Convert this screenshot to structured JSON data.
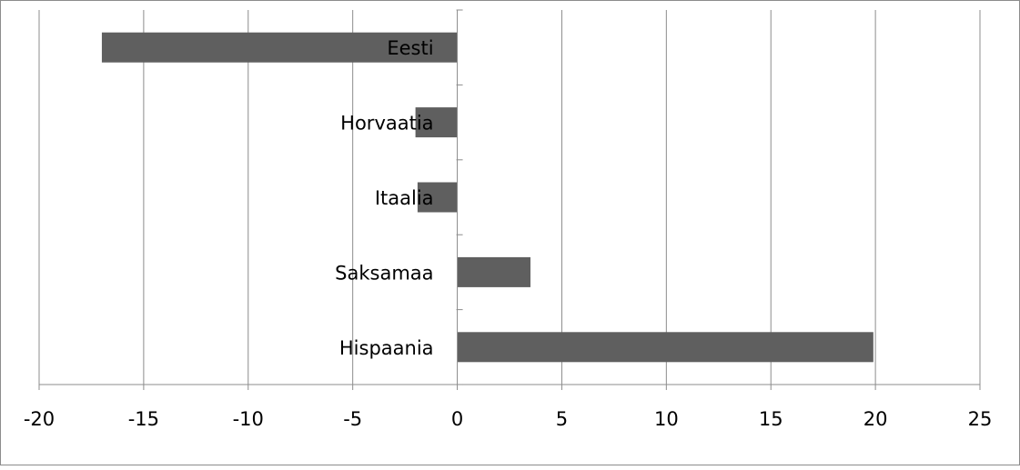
{
  "chart_data": {
    "type": "bar",
    "orientation": "horizontal",
    "categories": [
      "Eesti",
      "Horvaatia",
      "Itaalia",
      "Saksamaa",
      "Hispaania"
    ],
    "values": [
      -17,
      -2,
      -1.9,
      3.5,
      19.9
    ],
    "xlim": [
      -20,
      25
    ],
    "xticks": [
      "-20",
      "-15",
      "-10",
      "-5",
      "0",
      "5",
      "10",
      "15",
      "20",
      "25"
    ],
    "title": "",
    "xlabel": "",
    "ylabel": "",
    "grid": "vertical",
    "legend": "none",
    "bar_color": "#5f5f5f",
    "grid_color": "#8c8c8c"
  }
}
